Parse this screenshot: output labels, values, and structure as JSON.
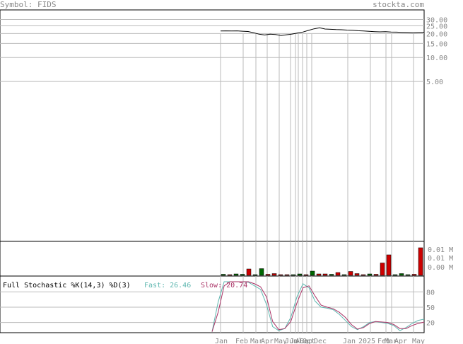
{
  "header": {
    "symbol_label": "Symbol: FIDS",
    "site": "stockta.com"
  },
  "colors": {
    "price": "#000000",
    "vol_up": "#006600",
    "vol_down": "#cc0000",
    "fast": "#5fb7b0",
    "slow": "#aa3366",
    "grid": "#bbbbbb",
    "frame": "#000000"
  },
  "chart_data": [
    {
      "type": "line",
      "panel": "price",
      "scale": "log",
      "y_ticks": [
        "30.00",
        "25.00",
        "20.00",
        "15.00",
        "10.00",
        "5.00"
      ],
      "y_tick_values": [
        30,
        25,
        20,
        15,
        10,
        5
      ],
      "x_ticks": [
        "Jan",
        "Feb",
        "Mar",
        "Apr",
        "May",
        "Jun",
        "Jul",
        "Aug",
        "Sep",
        "Oct",
        "Dec",
        "Jan",
        "2025",
        "Feb",
        "Mar",
        "Apr",
        "May"
      ],
      "series": [
        {
          "values": [
            21.5,
            21.6,
            21.5,
            21.6,
            21.4,
            21.2,
            20.5,
            19.6,
            19.2,
            19.6,
            19.4,
            18.9,
            19.3,
            19.7,
            20.3,
            20.9,
            21.9,
            22.9,
            23.6,
            22.8,
            22.6,
            22.4,
            22.3,
            22.1,
            22.0,
            21.7,
            21.5,
            21.3,
            21.1,
            21.0,
            21.1,
            20.9,
            20.8,
            20.7,
            20.6,
            20.5,
            20.6,
            20.7
          ]
        }
      ]
    },
    {
      "type": "bar",
      "panel": "volume",
      "y_ticks": [
        "0.01 M",
        "0.01 M",
        "0.00 M"
      ],
      "values": [
        0.0003,
        0.0002,
        0.0004,
        0.0003,
        0.0018,
        0.0002,
        0.0019,
        0.0003,
        0.0005,
        0.0002,
        0.0001,
        0.0002,
        0.0004,
        0.0002,
        0.0012,
        0.0004,
        0.0004,
        0.0003,
        0.0008,
        0.0002,
        0.0011,
        0.0005,
        0.0002,
        0.0004,
        0.0003,
        0.0035,
        0.0058,
        0.0002,
        0.0005,
        0.0002,
        0.0003,
        0.0078
      ],
      "direction": [
        "u",
        "d",
        "u",
        "u",
        "d",
        "u",
        "u",
        "d",
        "d",
        "d",
        "d",
        "u",
        "u",
        "d",
        "u",
        "d",
        "d",
        "u",
        "d",
        "u",
        "d",
        "d",
        "d",
        "u",
        "d",
        "d",
        "d",
        "u",
        "u",
        "u",
        "d",
        "d"
      ]
    },
    {
      "type": "line",
      "panel": "stochastic",
      "title": "Full Stochastic %K(14,3) %D(3)",
      "fast_label": "Fast: 26.46",
      "slow_label": "Slow: 20.74",
      "y_ticks": [
        "80",
        "50",
        "20"
      ],
      "y_tick_values": [
        80,
        50,
        20
      ],
      "series": [
        {
          "name": "Fast",
          "values": [
            2,
            60,
            100,
            100,
            100,
            100,
            99,
            92,
            85,
            55,
            12,
            4,
            8,
            30,
            70,
            96,
            88,
            62,
            50,
            48,
            45,
            36,
            24,
            12,
            6,
            12,
            20,
            22,
            20,
            18,
            14,
            4,
            10,
            18,
            24,
            26.46
          ]
        },
        {
          "name": "Slow",
          "values": [
            2,
            40,
            92,
            100,
            100,
            100,
            100,
            96,
            90,
            70,
            22,
            6,
            8,
            22,
            58,
            88,
            92,
            72,
            54,
            50,
            47,
            40,
            30,
            16,
            7,
            10,
            18,
            22,
            21,
            20,
            16,
            8,
            8,
            14,
            18,
            20.74
          ]
        }
      ]
    }
  ]
}
